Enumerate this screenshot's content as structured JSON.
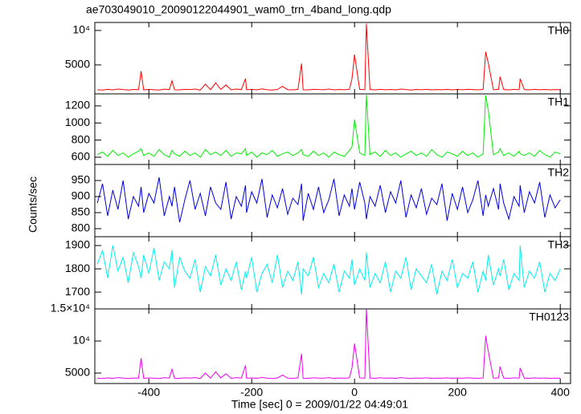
{
  "chart_data": {
    "type": "line",
    "title": "ae703049010_20090122044901_wam0_trn_4band_long.qdp",
    "xlabel": "Time [sec] 0 = 2009/01/22 04:49:01",
    "ylabel": "Counts/sec",
    "xlim": [
      -505,
      420
    ],
    "xticks": [
      -400,
      -200,
      0,
      200,
      400
    ],
    "x": [
      -500,
      -490,
      -480,
      -470,
      -460,
      -450,
      -440,
      -430,
      -420,
      -415,
      -410,
      -400,
      -390,
      -380,
      -370,
      -360,
      -355,
      -350,
      -340,
      -330,
      -320,
      -310,
      -300,
      -290,
      -280,
      -270,
      -260,
      -250,
      -240,
      -230,
      -220,
      -212,
      -210,
      -200,
      -190,
      -180,
      -170,
      -160,
      -150,
      -140,
      -130,
      -120,
      -110,
      -103,
      -100,
      -90,
      -80,
      -70,
      -60,
      -50,
      -40,
      -30,
      -20,
      -10,
      -5,
      0,
      10,
      20,
      23,
      30,
      40,
      50,
      60,
      70,
      80,
      90,
      100,
      110,
      120,
      130,
      140,
      150,
      160,
      170,
      180,
      190,
      200,
      210,
      220,
      230,
      240,
      250,
      255,
      260,
      270,
      280,
      283,
      290,
      300,
      310,
      320,
      322,
      330,
      340,
      350,
      360,
      370,
      380,
      390,
      400
    ],
    "series": [
      {
        "name": "TH0",
        "color": "#ff0000",
        "ylim": [
          800,
          11160
        ],
        "yticks": [
          5000,
          {
            "value": 10000,
            "label": "10⁴"
          }
        ],
        "values": [
          1400,
          1350,
          1450,
          1380,
          1500,
          1420,
          1360,
          1440,
          1400,
          4100,
          1380,
          1450,
          1400,
          1360,
          1480,
          1420,
          2700,
          1400,
          1380,
          1460,
          1420,
          1500,
          1350,
          2200,
          1400,
          2400,
          1450,
          2100,
          1380,
          1500,
          1420,
          3000,
          1400,
          1450,
          1380,
          1520,
          1400,
          1360,
          1440,
          1900,
          1400,
          1380,
          1450,
          5200,
          1400,
          1380,
          1460,
          1420,
          1400,
          1500,
          1380,
          1440,
          1400,
          1460,
          3000,
          6500,
          1450,
          1400,
          11000,
          1420,
          1380,
          1460,
          1400,
          1440,
          1380,
          1500,
          1420,
          1360,
          1440,
          1400,
          1460,
          1380,
          1420,
          1400,
          1450,
          1380,
          1440,
          1400,
          1460,
          1420,
          1380,
          1440,
          6900,
          5300,
          1400,
          1450,
          3300,
          1420,
          1380,
          1460,
          1400,
          3000,
          1420,
          1380,
          1450,
          1400,
          1440,
          1380,
          1420,
          1400
        ]
      },
      {
        "name": "TH1",
        "color": "#00ee00",
        "ylim": [
          515,
          1340
        ],
        "yticks": [
          600,
          800,
          1000,
          1200
        ],
        "values": [
          630,
          660,
          610,
          680,
          620,
          650,
          600,
          640,
          670,
          700,
          620,
          650,
          610,
          690,
          630,
          600,
          680,
          640,
          610,
          670,
          620,
          650,
          600,
          690,
          630,
          660,
          620,
          680,
          610,
          650,
          640,
          700,
          620,
          660,
          600,
          650,
          630,
          680,
          610,
          640,
          660,
          620,
          650,
          690,
          630,
          610,
          670,
          620,
          650,
          600,
          660,
          630,
          610,
          680,
          720,
          1040,
          650,
          620,
          1330,
          630,
          660,
          610,
          680,
          620,
          650,
          600,
          640,
          670,
          620,
          650,
          610,
          690,
          630,
          600,
          660,
          640,
          610,
          670,
          620,
          650,
          600,
          640,
          1320,
          1150,
          630,
          660,
          700,
          620,
          650,
          610,
          670,
          640,
          620,
          650,
          610,
          680,
          630,
          600,
          660,
          640
        ]
      },
      {
        "name": "TH2",
        "color": "#0000dd",
        "ylim": [
          775,
          1000
        ],
        "yticks": [
          800,
          850,
          900,
          950
        ],
        "values": [
          880,
          940,
          840,
          920,
          860,
          950,
          830,
          900,
          870,
          930,
          850,
          910,
          880,
          960,
          840,
          900,
          870,
          930,
          820,
          890,
          950,
          860,
          910,
          840,
          930,
          880,
          860,
          945,
          830,
          900,
          870,
          935,
          850,
          915,
          880,
          955,
          835,
          905,
          865,
          925,
          845,
          895,
          875,
          940,
          825,
          910,
          860,
          930,
          850,
          890,
          955,
          840,
          905,
          870,
          925,
          860,
          945,
          880,
          830,
          900,
          870,
          935,
          850,
          915,
          880,
          950,
          835,
          905,
          865,
          925,
          845,
          895,
          875,
          940,
          825,
          910,
          860,
          930,
          850,
          890,
          950,
          840,
          905,
          870,
          925,
          860,
          940,
          880,
          830,
          900,
          870,
          935,
          850,
          915,
          880,
          945,
          835,
          905,
          865,
          890
        ]
      },
      {
        "name": "TH3",
        "color": "#00eeee",
        "ylim": [
          1628,
          1938
        ],
        "yticks": [
          1700,
          1800,
          1900
        ],
        "values": [
          1820,
          1880,
          1760,
          1900,
          1790,
          1850,
          1740,
          1870,
          1810,
          1760,
          1860,
          1780,
          1890,
          1750,
          1830,
          1800,
          1880,
          1720,
          1850,
          1790,
          1760,
          1840,
          1700,
          1810,
          1770,
          1860,
          1730,
          1800,
          1750,
          1830,
          1710,
          1790,
          1760,
          1850,
          1700,
          1780,
          1820,
          1740,
          1860,
          1720,
          1790,
          1750,
          1830,
          1690,
          1800,
          1770,
          1850,
          1720,
          1780,
          1740,
          1820,
          1700,
          1790,
          1760,
          1840,
          1730,
          1800,
          1750,
          1870,
          1720,
          1780,
          1740,
          1830,
          1700,
          1790,
          1760,
          1850,
          1710,
          1800,
          1770,
          1740,
          1820,
          1690,
          1790,
          1750,
          1840,
          1720,
          1780,
          1760,
          1830,
          1700,
          1790,
          1750,
          1860,
          1730,
          1800,
          1770,
          1840,
          1710,
          1780,
          1750,
          1900,
          1720,
          1790,
          1760,
          1830,
          1700,
          1780,
          1750,
          1800
        ]
      },
      {
        "name": "TH0123",
        "color": "#ee00ee",
        "ylim": [
          3375,
          15000
        ],
        "yticks": [
          5000,
          {
            "value": 10000,
            "label": "10⁴"
          },
          {
            "value": 15000,
            "label": "1.5×10⁴"
          }
        ],
        "values": [
          4200,
          4150,
          4250,
          4180,
          4300,
          4220,
          4160,
          4240,
          4200,
          7300,
          4180,
          4250,
          4200,
          4160,
          4280,
          4220,
          5600,
          4200,
          4180,
          4260,
          4220,
          4300,
          4150,
          5000,
          4200,
          5200,
          4250,
          4900,
          4180,
          4300,
          4220,
          6200,
          4200,
          4250,
          4180,
          4320,
          4200,
          4160,
          4240,
          4700,
          4200,
          4180,
          4250,
          8000,
          4200,
          4180,
          4260,
          4220,
          4200,
          4300,
          4180,
          4240,
          4200,
          4260,
          5800,
          9600,
          4250,
          4200,
          15000,
          4220,
          4180,
          4260,
          4200,
          4240,
          4180,
          4300,
          4220,
          4160,
          4240,
          4200,
          4260,
          4180,
          4220,
          4200,
          4250,
          4180,
          4240,
          4200,
          4260,
          4220,
          4180,
          4240,
          10800,
          8400,
          4200,
          4250,
          6000,
          4220,
          4180,
          4260,
          4200,
          5800,
          4220,
          4180,
          4250,
          4200,
          4240,
          4180,
          4220,
          4200
        ]
      }
    ]
  }
}
